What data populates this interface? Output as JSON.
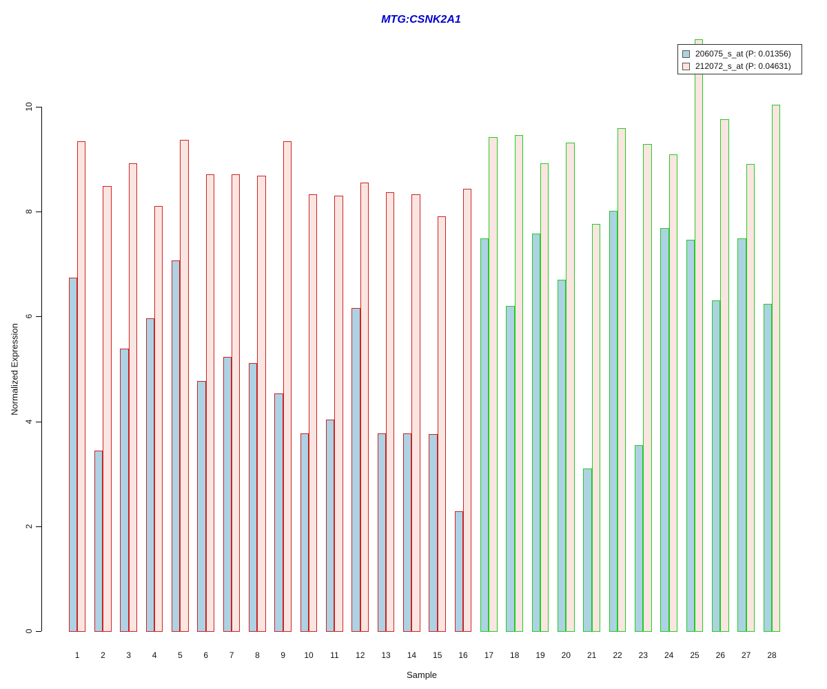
{
  "title_color": "#0000CC",
  "chart_data": {
    "type": "bar",
    "title": "MTG:CSNK2A1",
    "xlabel": "Sample",
    "ylabel": "Normalized Expression",
    "ylim": [
      0,
      11.4
    ],
    "yticks": [
      0,
      2,
      4,
      6,
      8,
      10
    ],
    "grid": false,
    "legend_position": "top-right",
    "categories": [
      "1",
      "2",
      "3",
      "4",
      "5",
      "6",
      "7",
      "8",
      "9",
      "10",
      "11",
      "12",
      "13",
      "14",
      "15",
      "16",
      "17",
      "18",
      "19",
      "20",
      "21",
      "22",
      "23",
      "24",
      "25",
      "26",
      "27",
      "28"
    ],
    "series": [
      {
        "name": "206075_s_at",
        "p_value": 0.01356,
        "legend_label": "206075_s_at (P: 0.01356)",
        "fill_color": "#ADD2E3",
        "values": [
          6.75,
          3.45,
          5.4,
          5.98,
          7.08,
          4.78,
          5.24,
          5.13,
          4.55,
          3.78,
          4.05,
          6.17,
          3.78,
          3.78,
          3.77,
          2.3,
          7.5,
          6.22,
          7.6,
          6.72,
          3.12,
          8.03,
          3.56,
          7.7,
          7.48,
          6.32,
          7.5,
          6.26
        ]
      },
      {
        "name": "212072_s_at",
        "p_value": 0.04631,
        "legend_label": "212072_s_at (P: 0.04631)",
        "fill_color": "#FBE5E1",
        "values": [
          9.35,
          8.5,
          8.93,
          8.12,
          9.38,
          8.72,
          8.72,
          8.7,
          9.35,
          8.34,
          8.32,
          8.57,
          8.39,
          8.35,
          7.92,
          8.45,
          9.43,
          9.47,
          8.93,
          9.33,
          7.78,
          9.6,
          9.3,
          9.1,
          11.3,
          9.78,
          8.92,
          10.05
        ]
      }
    ],
    "bar_border_colors": {
      "samples_1_to_16": "#CC2222",
      "samples_17_to_28": "#22CC22"
    },
    "border_group_split_after_sample": 16
  }
}
